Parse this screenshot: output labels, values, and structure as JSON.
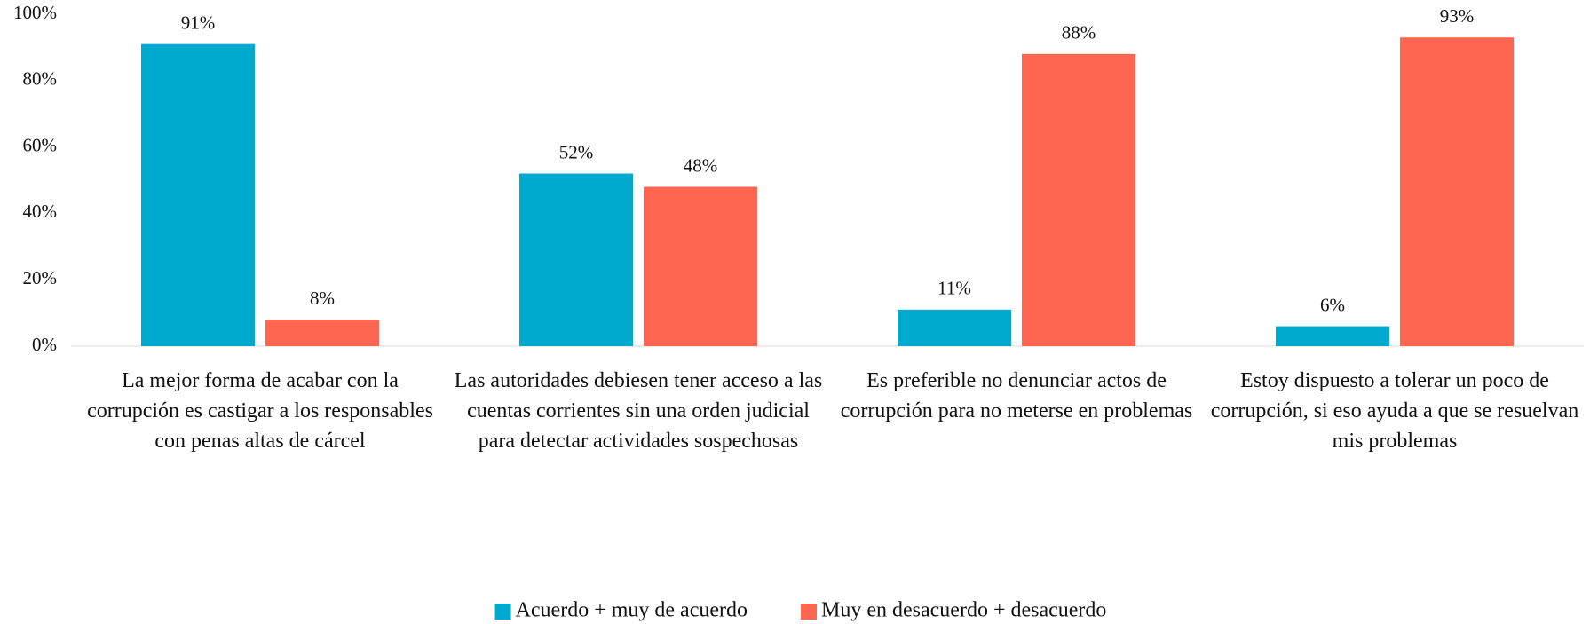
{
  "chart_data": {
    "type": "bar",
    "categories": [
      "La mejor forma de acabar con la corrupción es castigar a los responsables con penas altas de cárcel",
      "Las autoridades debiesen tener acceso a las cuentas corrientes sin una orden judicial para detectar actividades sospechosas",
      "Es preferible no denunciar actos de corrupción para no meterse en problemas",
      "Estoy dispuesto a tolerar un poco de corrupción, si eso ayuda a que se resuelvan mis problemas"
    ],
    "series": [
      {
        "name": "Acuerdo + muy de acuerdo",
        "color": "#00a9ce",
        "values": [
          91,
          52,
          11,
          6
        ],
        "value_labels": [
          "91%",
          "52%",
          "11%",
          "6%"
        ]
      },
      {
        "name": "Muy en desacuerdo + desacuerdo",
        "color": "#ff6652",
        "values": [
          8,
          48,
          88,
          93
        ],
        "value_labels": [
          "8%",
          "48%",
          "88%",
          "93%"
        ]
      }
    ],
    "ylim": [
      0,
      100
    ],
    "yticks": [
      {
        "value": 0,
        "label": "0%"
      },
      {
        "value": 20,
        "label": "20%"
      },
      {
        "value": 40,
        "label": "40%"
      },
      {
        "value": 60,
        "label": "60%"
      },
      {
        "value": 80,
        "label": "80%"
      },
      {
        "value": 100,
        "label": "100%"
      }
    ],
    "grid": false,
    "legend": "bottom"
  }
}
